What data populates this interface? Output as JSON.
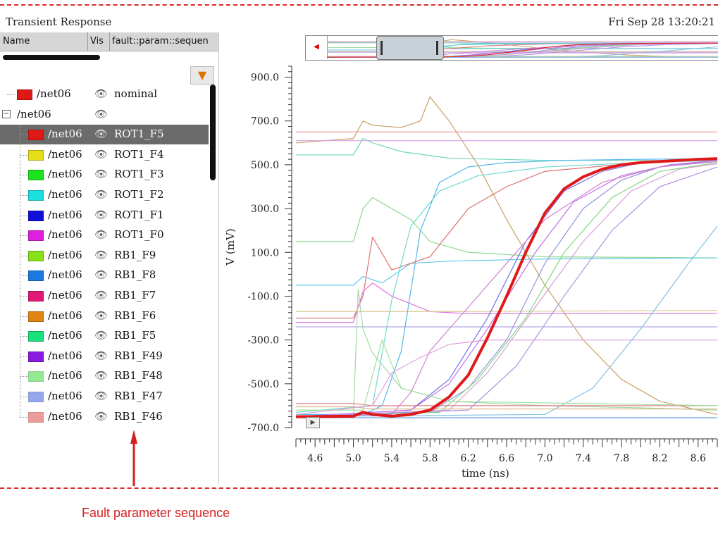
{
  "window": {
    "title": "Transient Response",
    "timestamp": "Fri Sep 28 13:20:21"
  },
  "columns": {
    "name": "Name",
    "vis": "Vis",
    "sequence": "fault::param::sequen"
  },
  "tree": [
    {
      "net": "/net06",
      "seq": "nominal",
      "color": "#e01818",
      "hatched": false,
      "level": 0
    },
    {
      "net": "/net06",
      "seq": "",
      "color": "",
      "hatched": false,
      "level": 0,
      "group": true
    },
    {
      "net": "/net06",
      "seq": "ROT1_F5",
      "color": "#e01818",
      "hatched": false,
      "level": 1,
      "selected": true
    },
    {
      "net": "/net06",
      "seq": "ROT1_F4",
      "color": "#e6dc1a",
      "hatched": false,
      "level": 1
    },
    {
      "net": "/net06",
      "seq": "ROT1_F3",
      "color": "#1ee21e",
      "hatched": false,
      "level": 1
    },
    {
      "net": "/net06",
      "seq": "ROT1_F2",
      "color": "#1ce0e0",
      "hatched": false,
      "level": 1
    },
    {
      "net": "/net06",
      "seq": "ROT1_F1",
      "color": "#1010d8",
      "hatched": false,
      "level": 1
    },
    {
      "net": "/net06",
      "seq": "ROT1_F0",
      "color": "#e01ee0",
      "hatched": false,
      "level": 1
    },
    {
      "net": "/net06",
      "seq": "RB1_F9",
      "color": "#86e01a",
      "hatched": false,
      "level": 1
    },
    {
      "net": "/net06",
      "seq": "RB1_F8",
      "color": "#1a7ae0",
      "hatched": false,
      "level": 1
    },
    {
      "net": "/net06",
      "seq": "RB1_F7",
      "color": "#e01a72",
      "hatched": false,
      "level": 1
    },
    {
      "net": "/net06",
      "seq": "RB1_F6",
      "color": "#e08614",
      "hatched": false,
      "level": 1
    },
    {
      "net": "/net06",
      "seq": "RB1_F5",
      "color": "#1ae07e",
      "hatched": false,
      "level": 1
    },
    {
      "net": "/net06",
      "seq": "RB1_F49",
      "color": "#8a1ae0",
      "hatched": false,
      "level": 1
    },
    {
      "net": "/net06",
      "seq": "RB1_F48",
      "color": "#3ed83e",
      "hatched": true,
      "level": 1
    },
    {
      "net": "/net06",
      "seq": "RB1_F47",
      "color": "#3e5ee0",
      "hatched": true,
      "level": 1
    },
    {
      "net": "/net06",
      "seq": "RB1_F46",
      "color": "#e04848",
      "hatched": true,
      "level": 1
    }
  ],
  "annotation": {
    "text": "Fault parameter sequence",
    "color": "#d42020"
  },
  "icons": {
    "visibility": "eye-icon",
    "filter": "filter-icon",
    "play": "play-icon",
    "scroll-left": "arrow-left-icon"
  },
  "chart_data": {
    "type": "line",
    "xlabel": "time (ns)",
    "ylabel": "V (mV)",
    "xlim": [
      4.4,
      8.8
    ],
    "ylim": [
      -700,
      950
    ],
    "xticks": [
      4.6,
      5.0,
      5.4,
      5.8,
      6.2,
      6.6,
      7.0,
      7.4,
      7.8,
      8.2,
      8.6
    ],
    "yticks": [
      -700.0,
      -500.0,
      -300.0,
      -100.0,
      100.0,
      300.0,
      500.0,
      700.0,
      900.0
    ],
    "highlight_series": {
      "name": "ROT1_F5",
      "color": "#e01818",
      "x": [
        4.4,
        5.0,
        5.1,
        5.2,
        5.4,
        5.6,
        5.8,
        6.0,
        6.2,
        6.4,
        6.6,
        6.8,
        7.0,
        7.2,
        7.4,
        7.6,
        7.8,
        8.0,
        8.2,
        8.4,
        8.6,
        8.8
      ],
      "y": [
        -650,
        -648,
        -630,
        -640,
        -648,
        -640,
        -620,
        -560,
        -460,
        -290,
        -100,
        100,
        280,
        390,
        445,
        480,
        500,
        510,
        515,
        520,
        525,
        528
      ]
    },
    "series": [
      {
        "color": "#c8a060",
        "x": [
          4.4,
          5.0,
          5.1,
          5.2,
          5.5,
          5.7,
          5.8,
          6.0,
          6.3,
          6.6,
          7.0,
          7.4,
          7.8,
          8.2,
          8.8
        ],
        "y": [
          600,
          620,
          700,
          680,
          670,
          700,
          810,
          700,
          500,
          250,
          -50,
          -300,
          -480,
          -580,
          -640
        ]
      },
      {
        "color": "#e8a0a0",
        "x": [
          4.4,
          8.8
        ],
        "y": [
          650,
          650
        ]
      },
      {
        "color": "#d8a0e8",
        "x": [
          4.4,
          8.8
        ],
        "y": [
          610,
          610
        ]
      },
      {
        "color": "#70d8b0",
        "x": [
          4.4,
          5.0,
          5.1,
          5.2,
          5.5,
          6.0,
          7.0,
          8.8
        ],
        "y": [
          545,
          545,
          620,
          600,
          560,
          530,
          520,
          520
        ]
      },
      {
        "color": "#90d890",
        "x": [
          4.4,
          5.0,
          5.1,
          5.2,
          5.4,
          5.6,
          5.8,
          6.2,
          7.0,
          8.8
        ],
        "y": [
          150,
          150,
          300,
          350,
          300,
          250,
          150,
          100,
          80,
          75
        ]
      },
      {
        "color": "#60c8e8",
        "x": [
          4.4,
          5.0,
          5.1,
          5.3,
          5.6,
          6.0,
          7.0,
          8.8
        ],
        "y": [
          -50,
          -50,
          -10,
          -40,
          50,
          60,
          70,
          75
        ]
      },
      {
        "color": "#e07070",
        "x": [
          4.4,
          5.0,
          5.1,
          5.2,
          5.4,
          5.8,
          6.2,
          6.6,
          7.0,
          8.0,
          8.8
        ],
        "y": [
          -200,
          -200,
          -100,
          170,
          20,
          80,
          300,
          400,
          470,
          510,
          525
        ]
      },
      {
        "color": "#e070e0",
        "x": [
          4.4,
          5.0,
          5.1,
          5.2,
          5.4,
          5.8,
          6.2,
          8.8
        ],
        "y": [
          -220,
          -220,
          -80,
          -40,
          -100,
          -170,
          -180,
          -180
        ]
      },
      {
        "color": "#d8c890",
        "x": [
          4.4,
          6.0,
          8.8
        ],
        "y": [
          -170,
          -170,
          -165
        ]
      },
      {
        "color": "#b8a8e8",
        "x": [
          4.4,
          6.2,
          8.8
        ],
        "y": [
          -240,
          -240,
          -240
        ]
      },
      {
        "color": "#a0d8a0",
        "x": [
          4.4,
          5.0,
          5.05,
          5.1,
          5.2,
          5.5,
          6.0,
          7.0,
          8.0,
          8.8
        ],
        "y": [
          -650,
          -650,
          -70,
          -250,
          -360,
          -520,
          -580,
          -600,
          -610,
          -620
        ]
      },
      {
        "color": "#50b8f0",
        "x": [
          4.4,
          5.1,
          5.3,
          5.5,
          5.7,
          5.9,
          6.2,
          6.6,
          7.2,
          8.0,
          8.8
        ],
        "y": [
          -640,
          -640,
          -600,
          -350,
          200,
          420,
          490,
          510,
          520,
          525,
          528
        ]
      },
      {
        "color": "#70d8d0",
        "x": [
          4.4,
          5.2,
          5.4,
          5.6,
          5.9,
          6.3,
          7.0,
          8.0,
          8.8
        ],
        "y": [
          -630,
          -600,
          -120,
          220,
          380,
          450,
          490,
          510,
          520
        ]
      },
      {
        "color": "#7070e8",
        "x": [
          4.4,
          5.6,
          6.0,
          6.4,
          6.8,
          7.2,
          7.6,
          8.0,
          8.8
        ],
        "y": [
          -650,
          -620,
          -480,
          -200,
          150,
          380,
          470,
          510,
          525
        ]
      },
      {
        "color": "#9090e0",
        "x": [
          4.4,
          5.8,
          6.2,
          6.6,
          7.0,
          7.4,
          7.8,
          8.2,
          8.8
        ],
        "y": [
          -650,
          -630,
          -520,
          -300,
          50,
          300,
          430,
          490,
          520
        ]
      },
      {
        "color": "#c070e0",
        "x": [
          4.4,
          5.6,
          6.0,
          6.4,
          6.9,
          7.3,
          7.8,
          8.3,
          8.8
        ],
        "y": [
          -650,
          -620,
          -500,
          -250,
          100,
          330,
          450,
          500,
          520
        ]
      },
      {
        "color": "#80d880",
        "x": [
          4.4,
          5.9,
          6.3,
          6.8,
          7.2,
          7.7,
          8.2,
          8.8
        ],
        "y": [
          -650,
          -630,
          -480,
          -200,
          100,
          350,
          470,
          510
        ]
      },
      {
        "color": "#d8a0d8",
        "x": [
          4.4,
          6.0,
          6.4,
          6.9,
          7.4,
          7.9,
          8.4,
          8.8
        ],
        "y": [
          -650,
          -620,
          -450,
          -150,
          150,
          380,
          480,
          505
        ]
      },
      {
        "color": "#b090e0",
        "x": [
          4.4,
          6.2,
          6.7,
          7.2,
          7.7,
          8.2,
          8.8
        ],
        "y": [
          -650,
          -620,
          -420,
          -100,
          200,
          400,
          490
        ]
      },
      {
        "color": "#80c0e0",
        "x": [
          4.4,
          7.0,
          7.5,
          8.0,
          8.5,
          8.8
        ],
        "y": [
          -650,
          -640,
          -520,
          -250,
          50,
          220
        ]
      },
      {
        "color": "#e08080",
        "x": [
          4.4,
          5.0,
          5.2,
          8.8
        ],
        "y": [
          -590,
          -590,
          -600,
          -600
        ]
      },
      {
        "color": "#d8b080",
        "x": [
          4.4,
          5.0,
          5.2,
          8.8
        ],
        "y": [
          -605,
          -605,
          -615,
          -615
        ]
      },
      {
        "color": "#a0e0a0",
        "x": [
          4.4,
          5.1,
          5.3,
          5.5,
          6.0,
          8.8
        ],
        "y": [
          -620,
          -620,
          -300,
          -520,
          -580,
          -600
        ]
      },
      {
        "color": "#e0a0e0",
        "x": [
          4.4,
          5.2,
          5.4,
          5.7,
          6.0,
          6.4,
          8.8
        ],
        "y": [
          -640,
          -600,
          -450,
          -380,
          -320,
          -300,
          -300
        ]
      },
      {
        "color": "#70a0e8",
        "x": [
          4.4,
          8.8
        ],
        "y": [
          -655,
          -655
        ]
      },
      {
        "color": "#d080d0",
        "x": [
          4.4,
          5.4,
          5.6,
          5.8,
          6.2,
          6.6,
          7.0,
          7.6,
          8.2,
          8.8
        ],
        "y": [
          -650,
          -640,
          -540,
          -350,
          -150,
          50,
          250,
          420,
          490,
          515
        ]
      }
    ]
  }
}
